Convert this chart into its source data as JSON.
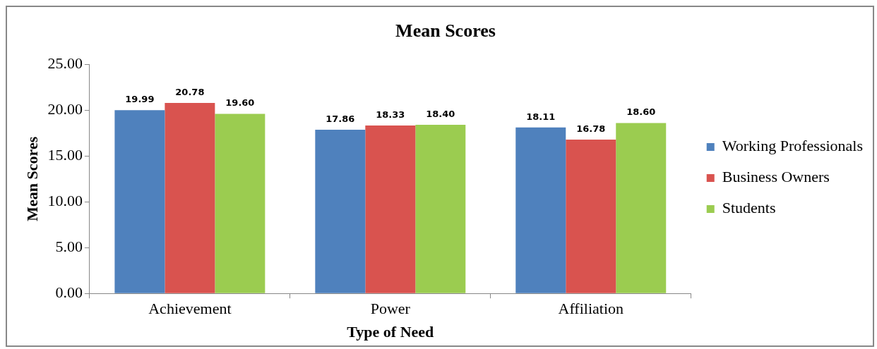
{
  "chart_data": {
    "type": "bar",
    "title": "Mean Scores",
    "xlabel": "Type of Need",
    "ylabel": "Mean Scores",
    "categories": [
      "Achievement",
      "Power",
      "Affiliation"
    ],
    "series": [
      {
        "name": "Working Professionals",
        "color": "#4f81bd",
        "values": [
          19.99,
          17.86,
          18.11
        ],
        "value_labels": [
          "19.99",
          "17.86",
          "18.11"
        ]
      },
      {
        "name": "Business Owners",
        "color": "#d9534f",
        "values": [
          20.78,
          18.33,
          16.78
        ],
        "value_labels": [
          "20.78",
          "18.33",
          "16.78"
        ]
      },
      {
        "name": "Students",
        "color": "#9bcc50",
        "values": [
          19.6,
          18.4,
          18.6
        ],
        "value_labels": [
          "19.60",
          "18.40",
          "18.60"
        ]
      }
    ],
    "ylim": [
      0,
      25
    ],
    "yticks": [
      {
        "value": 0,
        "label": "0.00"
      },
      {
        "value": 5,
        "label": "5.00"
      },
      {
        "value": 10,
        "label": "10.00"
      },
      {
        "value": 15,
        "label": "15.00"
      },
      {
        "value": 20,
        "label": "20.00"
      },
      {
        "value": 25,
        "label": "25.00"
      }
    ],
    "grid": false,
    "legend": "right"
  }
}
